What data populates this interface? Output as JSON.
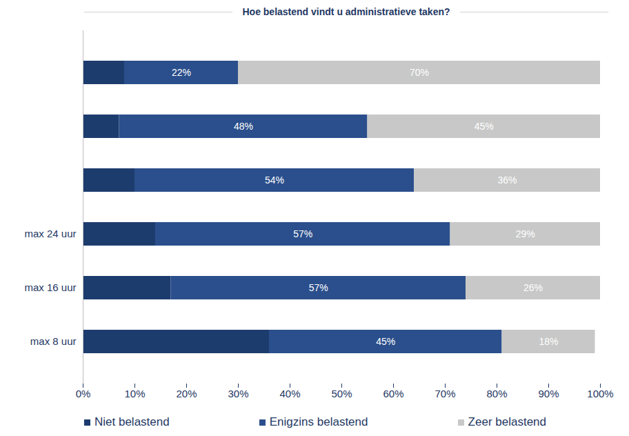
{
  "chart_data": {
    "type": "bar",
    "title": "Hoe belastend vindt u administratieve taken?",
    "orientation": "horizontal",
    "stacked": true,
    "data_labels": true,
    "grid": false,
    "legend": "bottom",
    "categories": [
      null,
      null,
      null,
      "max 24 uur",
      "max 16 uur",
      "max 8 uur"
    ],
    "series": [
      {
        "name": "Niet belastend",
        "color": "#1d3c6e",
        "values": [
          8,
          7,
          10,
          14,
          17,
          36
        ],
        "data_labels": false
      },
      {
        "name": "Enigzins belastend",
        "color": "#2b4f8c",
        "values": [
          22,
          48,
          54,
          57,
          57,
          45
        ],
        "value_labels": [
          "22%",
          "48%",
          "54%",
          "57%",
          "57%",
          "45%"
        ]
      },
      {
        "name": "Zeer belastend",
        "color": "#c8c8c8",
        "values": [
          70,
          45,
          36,
          29,
          26,
          18
        ],
        "value_labels": [
          "70%",
          "45%",
          "36%",
          "29%",
          "26%",
          "18%"
        ]
      }
    ],
    "xlim": [
      0,
      100
    ],
    "xticks": [
      {
        "value": 0,
        "label": "0%"
      },
      {
        "value": 10,
        "label": "10%"
      },
      {
        "value": 20,
        "label": "20%"
      },
      {
        "value": 30,
        "label": "30%"
      },
      {
        "value": 40,
        "label": "40%"
      },
      {
        "value": 50,
        "label": "50%"
      },
      {
        "value": 60,
        "label": "60%"
      },
      {
        "value": 70,
        "label": "70%"
      },
      {
        "value": 80,
        "label": "80%"
      },
      {
        "value": 90,
        "label": "90%"
      },
      {
        "value": 100,
        "label": "100%"
      }
    ]
  }
}
